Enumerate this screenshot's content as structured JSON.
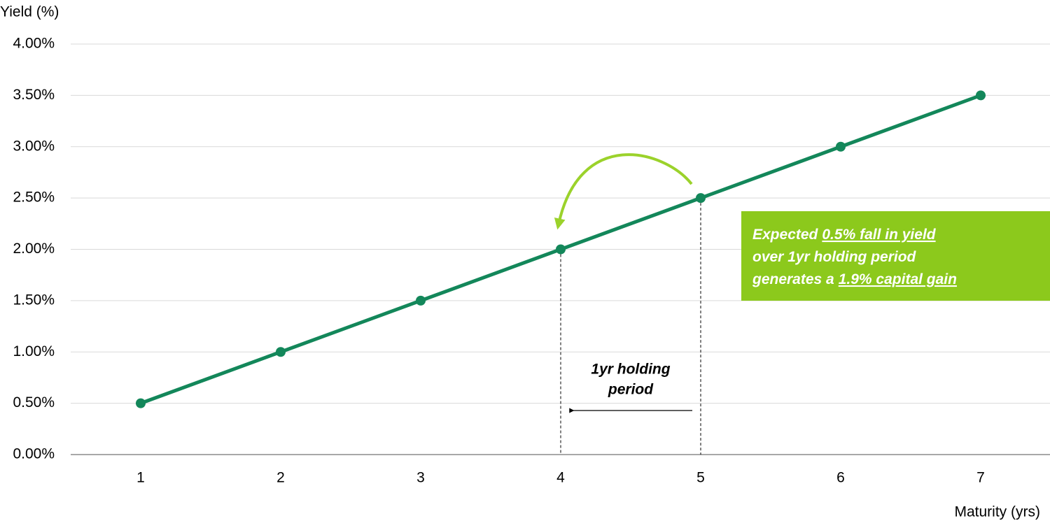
{
  "chart_data": {
    "type": "line",
    "y_label": "Yield (%)",
    "x_label": "Maturity (yrs)",
    "categories": [
      "1",
      "2",
      "3",
      "4",
      "5",
      "6",
      "7"
    ],
    "values": [
      0.5,
      1.0,
      1.5,
      2.0,
      2.5,
      3.0,
      3.5
    ],
    "color": "#13875a",
    "ylim": [
      0,
      4
    ],
    "yticks": [
      {
        "value": 0,
        "label": "0.00%"
      },
      {
        "value": 0.5,
        "label": "0.50%"
      },
      {
        "value": 1,
        "label": "1.00%"
      },
      {
        "value": 1.5,
        "label": "1.50%"
      },
      {
        "value": 2,
        "label": "2.00%"
      },
      {
        "value": 2.5,
        "label": "2.50%"
      },
      {
        "value": 3,
        "label": "3.00%"
      },
      {
        "value": 3.5,
        "label": "3.50%"
      },
      {
        "value": 4,
        "label": "4.00%"
      }
    ],
    "grid": true,
    "holding_label": [
      "1yr holding",
      "period"
    ],
    "callout": {
      "color": "#8cc91c",
      "lines": [
        [
          {
            "text": "Expected"
          },
          {
            "text": "0.5% fall in yield",
            "underline": true
          }
        ],
        [
          {
            "text": "over 1yr holding period"
          }
        ],
        [
          {
            "text": "generates a"
          },
          {
            "text": "1.9% capital gain",
            "underline": true
          }
        ]
      ]
    }
  }
}
